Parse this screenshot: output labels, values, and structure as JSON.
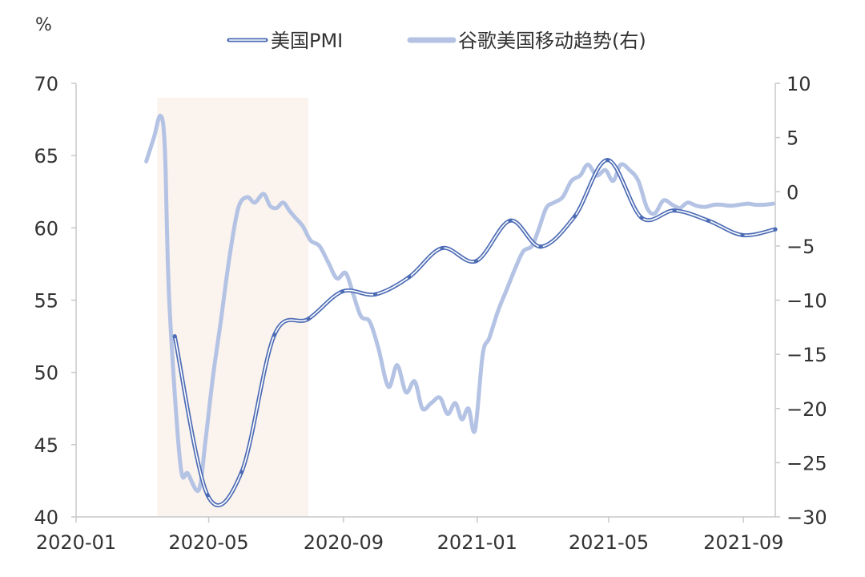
{
  "chart_data": {
    "type": "line",
    "left_axis_unit": "%",
    "ylim_left": [
      40,
      70
    ],
    "yticks_left": [
      "70",
      "65",
      "60",
      "55",
      "50",
      "45",
      "40"
    ],
    "ylim_right": [
      -30,
      10
    ],
    "yticks_right": [
      "10",
      "5",
      "0",
      "−5",
      "−10",
      "−15",
      "−20",
      "−25",
      "−30"
    ],
    "xlim": [
      "2020-01-01",
      "2021-09-30"
    ],
    "xticks": [
      "2020-01",
      "2020-05",
      "2020-09",
      "2021-01",
      "2021-05",
      "2021-09"
    ],
    "grid": false,
    "legend_position": "top",
    "shaded_region": {
      "start": "2020-03-15",
      "end": "2020-07-31",
      "color": "#fbf3ee"
    },
    "series": [
      {
        "name": "美国PMI",
        "axis": "left",
        "color": "#4d6cb5",
        "style": "double-line",
        "x": [
          "2020-03-31",
          "2020-04-30",
          "2020-05-31",
          "2020-06-30",
          "2020-07-31",
          "2020-08-31",
          "2020-09-30",
          "2020-10-31",
          "2020-11-30",
          "2020-12-31",
          "2021-01-31",
          "2021-02-28",
          "2021-03-31",
          "2021-04-30",
          "2021-05-31",
          "2021-06-30",
          "2021-07-31",
          "2021-08-31",
          "2021-09-30"
        ],
        "values": [
          52.5,
          41.5,
          43.1,
          52.6,
          53.7,
          55.6,
          55.4,
          56.6,
          58.6,
          57.7,
          60.5,
          58.7,
          60.8,
          64.7,
          60.7,
          61.2,
          60.5,
          59.5,
          59.9
        ]
      },
      {
        "name": "谷歌美国移动趋势(右)",
        "axis": "right",
        "color": "#b4c3e4",
        "style": "thick",
        "x": [
          "2020-03-05",
          "2020-03-12",
          "2020-03-18",
          "2020-03-22",
          "2020-03-26",
          "2020-04-05",
          "2020-04-12",
          "2020-04-22",
          "2020-04-28",
          "2020-05-05",
          "2020-05-12",
          "2020-05-20",
          "2020-05-28",
          "2020-06-05",
          "2020-06-12",
          "2020-06-20",
          "2020-06-26",
          "2020-07-02",
          "2020-07-08",
          "2020-07-14",
          "2020-07-20",
          "2020-07-26",
          "2020-08-02",
          "2020-08-10",
          "2020-08-18",
          "2020-08-26",
          "2020-09-03",
          "2020-09-10",
          "2020-09-17",
          "2020-09-25",
          "2020-10-03",
          "2020-10-12",
          "2020-10-20",
          "2020-10-28",
          "2020-11-05",
          "2020-11-12",
          "2020-11-20",
          "2020-11-28",
          "2020-12-05",
          "2020-12-12",
          "2020-12-18",
          "2020-12-24",
          "2020-12-30",
          "2021-01-06",
          "2021-01-12",
          "2021-01-20",
          "2021-01-28",
          "2021-02-05",
          "2021-02-12",
          "2021-02-20",
          "2021-02-26",
          "2021-03-05",
          "2021-03-12",
          "2021-03-20",
          "2021-03-28",
          "2021-04-05",
          "2021-04-12",
          "2021-04-20",
          "2021-04-28",
          "2021-05-05",
          "2021-05-12",
          "2021-05-20",
          "2021-05-28",
          "2021-06-05",
          "2021-06-12",
          "2021-06-20",
          "2021-06-28",
          "2021-07-05",
          "2021-07-12",
          "2021-07-20",
          "2021-07-28",
          "2021-08-05",
          "2021-08-12",
          "2021-08-20",
          "2021-08-28",
          "2021-09-05",
          "2021-09-12",
          "2021-09-20",
          "2021-09-28"
        ],
        "values": [
          2.8,
          5.0,
          7.0,
          4.0,
          -10.0,
          -25.0,
          -26.0,
          -27.5,
          -23.0,
          -17.0,
          -12.0,
          -6.0,
          -1.5,
          -0.5,
          -1.0,
          -0.2,
          -1.3,
          -1.5,
          -1.0,
          -1.8,
          -2.5,
          -3.2,
          -4.5,
          -5.0,
          -6.5,
          -8.0,
          -7.5,
          -9.5,
          -11.5,
          -12.0,
          -14.5,
          -18.0,
          -16.0,
          -18.5,
          -17.5,
          -20.0,
          -19.5,
          -19.0,
          -20.5,
          -19.5,
          -21.0,
          -20.0,
          -22.0,
          -15.0,
          -13.5,
          -11.0,
          -9.0,
          -7.0,
          -5.5,
          -5.0,
          -3.5,
          -1.5,
          -1.0,
          -0.5,
          1.0,
          1.5,
          2.5,
          1.5,
          2.0,
          1.0,
          2.5,
          2.0,
          1.0,
          -1.5,
          -2.0,
          -0.8,
          -1.2,
          -1.5,
          -1.0,
          -1.3,
          -1.4,
          -1.2,
          -1.2,
          -1.3,
          -1.2,
          -1.1,
          -1.2,
          -1.2,
          -1.1
        ]
      }
    ]
  }
}
